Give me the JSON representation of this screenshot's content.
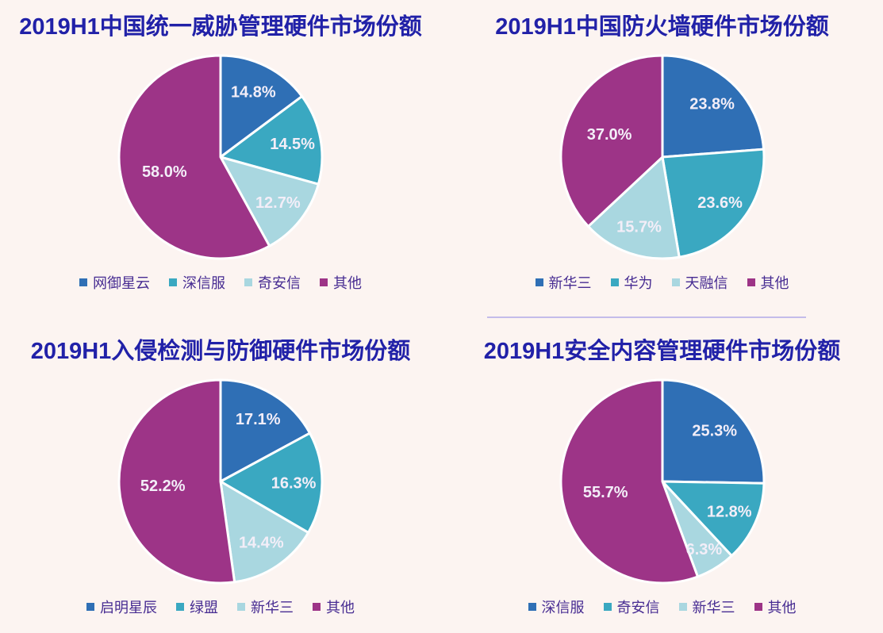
{
  "page": {
    "background_color": "#fcf4f1"
  },
  "palette": {
    "blue": "#2f6fb5",
    "teal": "#3aa8c1",
    "light_blue": "#a9d7e0",
    "purple": "#9d3487",
    "title_text": "#2121a8",
    "legend_text": "#472c92",
    "slice_label_text": "#f3eef8",
    "slice_border": "#ffffff",
    "divider": "#b5aee9"
  },
  "chart_data": [
    {
      "type": "pie",
      "title": "2019H1中国统一威胁管理硬件市场份额",
      "categories": [
        "网御星云",
        "深信服",
        "奇安信",
        "其他"
      ],
      "values": [
        14.8,
        14.5,
        12.7,
        58.0
      ],
      "slice_labels": [
        "14.8%",
        "14.5%",
        "12.7%",
        "58.0%"
      ],
      "colors": [
        "blue",
        "teal",
        "light_blue",
        "purple"
      ],
      "start_angle": "12-oclock",
      "direction": "clockwise",
      "legend_position": "bottom"
    },
    {
      "type": "pie",
      "title": "2019H1中国防火墙硬件市场份额",
      "categories": [
        "新华三",
        "华为",
        "天融信",
        "其他"
      ],
      "values": [
        23.8,
        23.6,
        15.7,
        37.0
      ],
      "slice_labels": [
        "23.8%",
        "23.6%",
        "15.7%",
        "37.0%"
      ],
      "colors": [
        "blue",
        "teal",
        "light_blue",
        "purple"
      ],
      "start_angle": "12-oclock",
      "direction": "clockwise",
      "legend_position": "bottom"
    },
    {
      "type": "pie",
      "title": "2019H1入侵检测与防御硬件市场份额",
      "categories": [
        "启明星辰",
        "绿盟",
        "新华三",
        "其他"
      ],
      "values": [
        17.1,
        16.3,
        14.4,
        52.2
      ],
      "slice_labels": [
        "17.1%",
        "16.3%",
        "14.4%",
        "52.2%"
      ],
      "colors": [
        "blue",
        "teal",
        "light_blue",
        "purple"
      ],
      "start_angle": "12-oclock",
      "direction": "clockwise",
      "legend_position": "bottom"
    },
    {
      "type": "pie",
      "title": "2019H1安全内容管理硬件市场份额",
      "categories": [
        "深信服",
        "奇安信",
        "新华三",
        "其他"
      ],
      "values": [
        25.3,
        12.8,
        6.3,
        55.7
      ],
      "slice_labels": [
        "25.3%",
        "12.8%",
        "6.3%",
        "55.7%"
      ],
      "colors": [
        "blue",
        "teal",
        "light_blue",
        "purple"
      ],
      "start_angle": "12-oclock",
      "direction": "clockwise",
      "legend_position": "bottom"
    }
  ]
}
